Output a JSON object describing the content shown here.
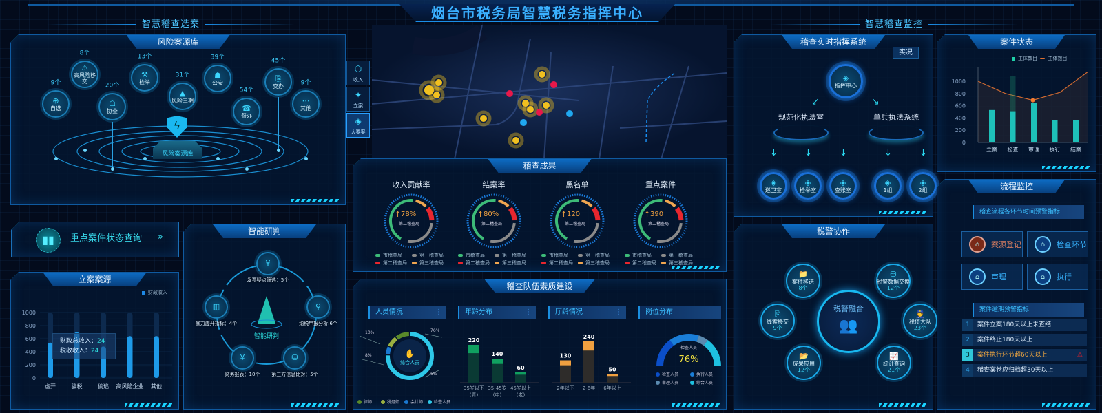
{
  "header": {
    "title": "烟台市税务局智慧税务指挥中心",
    "left_section": "智慧稽查选案",
    "right_section": "智慧稽查监控"
  },
  "risk": {
    "title": "风险案源库",
    "base_label": "风险案源库",
    "nodes": [
      {
        "label": "自选",
        "count": "9个",
        "icon": "plus-circle-icon"
      },
      {
        "label": "高风险移交",
        "count": "8个",
        "icon": "alarm-icon"
      },
      {
        "label": "协查",
        "count": "20个",
        "icon": "police-cap-icon"
      },
      {
        "label": "检举",
        "count": "13个",
        "icon": "gavel-icon"
      },
      {
        "label": "风险三期",
        "count": "31个",
        "icon": "warning-icon"
      },
      {
        "label": "公安",
        "count": "39个",
        "icon": "police-icon"
      },
      {
        "label": "督办",
        "count": "54个",
        "icon": "phone-clock-icon"
      },
      {
        "label": "交办",
        "count": "45个",
        "icon": "document-forward-icon"
      },
      {
        "label": "其他",
        "count": "9个",
        "icon": "more-icon"
      }
    ]
  },
  "query": {
    "label": "重点案件状态查询"
  },
  "filing": {
    "title": "立案案源",
    "chart_data": {
      "type": "bar",
      "categories": [
        "虚开",
        "骗税",
        "偷逃",
        "高风险企业",
        "其他"
      ],
      "series": [
        {
          "name": "财政收入",
          "values": [
            540,
            700,
            480,
            640,
            640
          ]
        }
      ],
      "ylim": [
        0,
        1000
      ],
      "yticks": [
        0,
        200,
        400,
        600,
        800,
        1000
      ]
    },
    "tooltip": {
      "line1_label": "财政总收入：",
      "line1_value": "24",
      "line2_label": "税收收入：",
      "line2_value": "24"
    }
  },
  "judge": {
    "title": "智能研判",
    "center": "智能研判",
    "nodes": [
      "发票疑点筛选：5个",
      "纳税申报分析:6个",
      "第三方信息比对：5个",
      "财务报表：10个",
      "暴力虚开指标：4个"
    ]
  },
  "map": {
    "tabs": [
      {
        "label": "收入"
      },
      {
        "label": "立案"
      },
      {
        "label": "大要案",
        "active": true
      }
    ]
  },
  "results": {
    "title": "稽查成果",
    "legend": [
      "市稽查局",
      "第一稽查局",
      "第二稽查局",
      "第三稽查局"
    ],
    "legend_colors": [
      "#3dbb78",
      "#8a8a8a",
      "#e8262e",
      "#f0a650"
    ],
    "gauges": [
      {
        "title": "收入贡献率",
        "value": "78%",
        "sub": "第二稽查局"
      },
      {
        "title": "结案率",
        "value": "80%",
        "sub": "第二稽查局"
      },
      {
        "title": "黑名单",
        "value": "120",
        "sub": "第二稽查局"
      },
      {
        "title": "重点案件",
        "value": "390",
        "sub": "第二稽查局"
      }
    ]
  },
  "team": {
    "title": "稽查队伍素质建设",
    "staff": {
      "header": "人员情况",
      "center": "综合人员",
      "chart_data": {
        "type": "pie",
        "categories": [
          "律师",
          "税务师",
          "会计师",
          "检查人员"
        ],
        "values": [
          10,
          8,
          6,
          76
        ],
        "labels": [
          "10%",
          "8%",
          "6%",
          "76%"
        ],
        "colors": [
          "#5a8a2a",
          "#9ab040",
          "#1a78d0",
          "#2ec8e8"
        ]
      }
    },
    "age": {
      "header": "年龄分布",
      "chart_data": {
        "type": "bar",
        "categories": [
          "35岁以下\n(青)",
          "35-45岁\n(中)",
          "45岁以上\n(老)"
        ],
        "values": [
          220,
          140,
          60
        ]
      }
    },
    "tenure": {
      "header": "厅龄情况",
      "chart_data": {
        "type": "bar",
        "categories": [
          "2年以下",
          "2-6年",
          "6年以上"
        ],
        "values": [
          130,
          240,
          50
        ]
      }
    },
    "post": {
      "header": "岗位分布",
      "label": "检查人员",
      "value": "76%",
      "legend": [
        "检查人员",
        "执行人员",
        "审理人员",
        "综合人员"
      ],
      "colors": [
        "#0b4ec8",
        "#1a7ed8",
        "#5a8ab0",
        "#1ec0e0"
      ]
    }
  },
  "command": {
    "title": "稽查实时指挥系统",
    "live_button": "实况",
    "center": "指挥中心",
    "branches": [
      {
        "label": "规范化执法室",
        "leaves": [
          "巡卫室",
          "检举室",
          "查账室"
        ]
      },
      {
        "label": "单兵执法系统",
        "leaves": [
          "1组",
          "2组"
        ]
      }
    ]
  },
  "police": {
    "title": "税警协作",
    "center": "税警融合",
    "nodes": [
      {
        "label": "案件移送",
        "count": "8个"
      },
      {
        "label": "税警数据交换",
        "count": "12个"
      },
      {
        "label": "线索移交",
        "count": "9个"
      },
      {
        "label": "税侦大队",
        "count": "23个"
      },
      {
        "label": "成果应用",
        "count": "12个"
      },
      {
        "label": "统计查询",
        "count": "21个"
      }
    ]
  },
  "case_status": {
    "title": "案件状态",
    "chart_data": {
      "type": "bar+line",
      "categories": [
        "立案",
        "检查",
        "审理",
        "执行",
        "结案"
      ],
      "series": [
        {
          "name": "主体数目",
          "type": "bar",
          "values": [
            530,
            510,
            650,
            360,
            360
          ]
        },
        {
          "name": "主体数目",
          "type": "line",
          "values": [
            1000,
            800,
            690,
            820,
            1150
          ]
        }
      ],
      "ylim": [
        0,
        1000
      ],
      "yticks": [
        0,
        200,
        400,
        600,
        800,
        1000
      ],
      "highlight": "检查"
    }
  },
  "flow": {
    "title": "流程监控",
    "warn_header": "稽查流程各环节时间预警指标",
    "stages": [
      {
        "label": "案源登记",
        "alert": true
      },
      {
        "label": "检查环节"
      },
      {
        "label": "审理"
      },
      {
        "label": "执行"
      }
    ],
    "overdue_header": "案件逾期预警指标",
    "items": [
      {
        "no": "1",
        "text": "案件立案180天以上未查结"
      },
      {
        "no": "2",
        "text": "案件终止180天以上"
      },
      {
        "no": "3",
        "text": "案件执行环节超60天以上",
        "alert": true
      },
      {
        "no": "4",
        "text": "稽查案卷应归档超30天以上"
      }
    ]
  }
}
